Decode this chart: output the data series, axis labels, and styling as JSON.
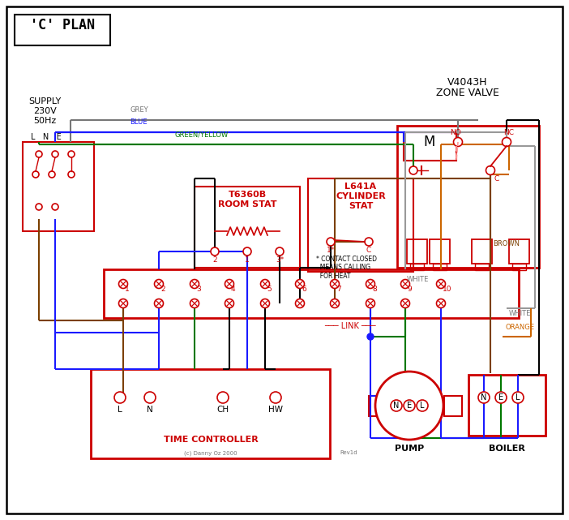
{
  "bg": "#ffffff",
  "red": "#cc0000",
  "blue": "#1a1aff",
  "green": "#007700",
  "grey": "#777777",
  "brown": "#7B3F00",
  "orange": "#CC6600",
  "black": "#000000",
  "white_wire": "#999999",
  "pink": "#ff9999",
  "title": "'C' PLAN",
  "copyright": "(c) Danny Oz 2000",
  "revision": "Rev1d"
}
